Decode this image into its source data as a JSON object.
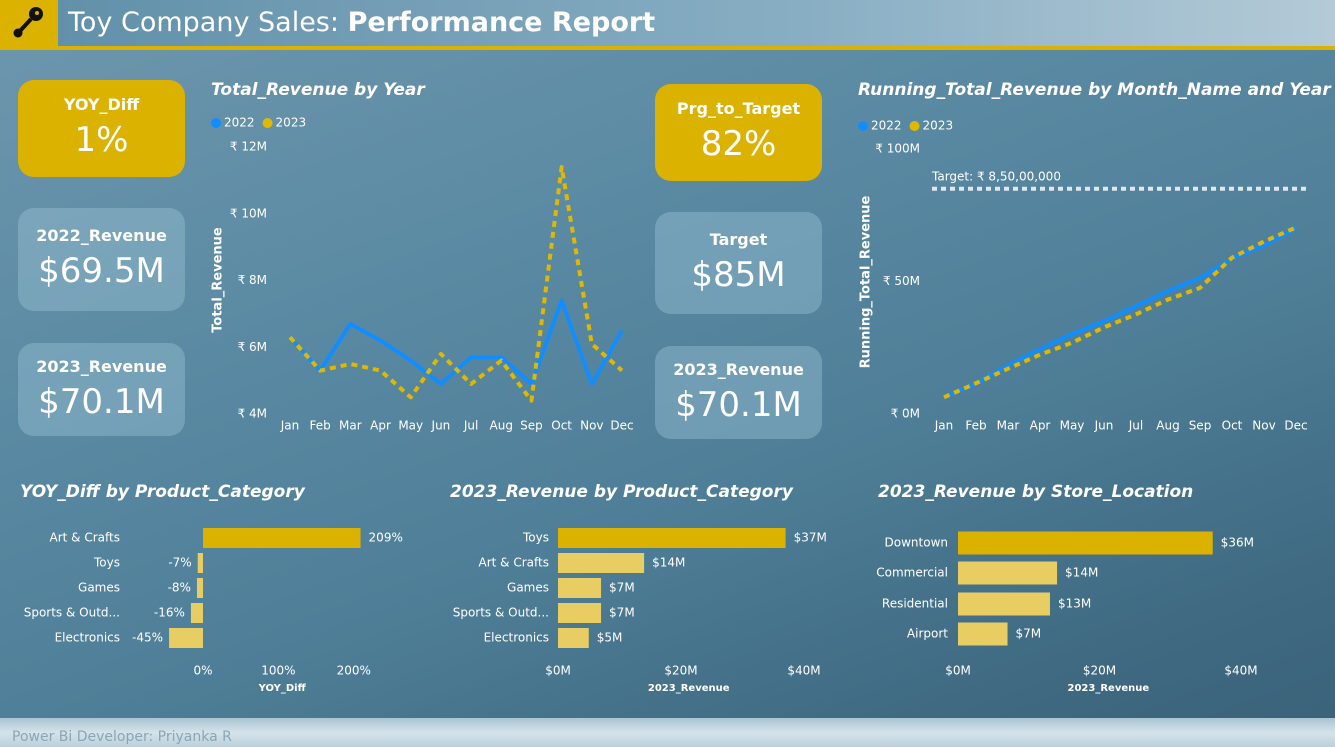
{
  "header": {
    "title_plain": "Toy Company Sales:",
    "title_bold": "Performance Report"
  },
  "cards": [
    {
      "label": "YOY_Diff",
      "value": "1%"
    },
    {
      "label": "2022_Revenue",
      "value": "$69.5M"
    },
    {
      "label": "2023_Revenue",
      "value": "$70.1M"
    },
    {
      "label": "Prg_to_Target",
      "value": "82%"
    },
    {
      "label": "Target",
      "value": "$85M"
    },
    {
      "label": "2023_Revenue",
      "value": "$70.1M"
    }
  ],
  "footer": "Power Bi Developer: Priyanka R",
  "chart_data": [
    {
      "type": "line",
      "title": "Total_Revenue by Year",
      "y_label": "Total_Revenue",
      "categories": [
        "Jan",
        "Feb",
        "Mar",
        "Apr",
        "May",
        "Jun",
        "Jul",
        "Aug",
        "Sep",
        "Oct",
        "Nov",
        "Dec"
      ],
      "series": [
        {
          "name": "2022",
          "color": "#118dff",
          "dashed": false,
          "values": [
            6300000,
            5300000,
            6700000,
            6200000,
            5600000,
            4900000,
            5700000,
            5700000,
            4900000,
            7400000,
            4900000,
            6500000
          ]
        },
        {
          "name": "2023",
          "color": "#e0b800",
          "dashed": true,
          "values": [
            6300000,
            5300000,
            5500000,
            5300000,
            4500000,
            5800000,
            4900000,
            5600000,
            4400000,
            11400000,
            6100000,
            5300000
          ]
        }
      ],
      "ylim": [
        4000000,
        12000000
      ],
      "yticks": [
        {
          "value": 4000000,
          "label": "₹ 4M"
        },
        {
          "value": 6000000,
          "label": "₹ 6M"
        },
        {
          "value": 8000000,
          "label": "₹ 8M"
        },
        {
          "value": 10000000,
          "label": "₹ 10M"
        },
        {
          "value": 12000000,
          "label": "₹ 12M"
        }
      ]
    },
    {
      "type": "line",
      "title": "Running_Total_Revenue by Month_Name and Year",
      "y_label": "Running_Total_Revenue",
      "categories": [
        "Jan",
        "Feb",
        "Mar",
        "Apr",
        "May",
        "Jun",
        "Jul",
        "Aug",
        "Sep",
        "Oct",
        "Nov",
        "Dec"
      ],
      "series": [
        {
          "name": "2022",
          "color": "#118dff",
          "dashed": false,
          "values": [
            6300000,
            11600000,
            18300000,
            24500000,
            30100000,
            35000000,
            40700000,
            46400000,
            51300000,
            58700000,
            63600000,
            70100000
          ]
        },
        {
          "name": "2023",
          "color": "#e0b800",
          "dashed": true,
          "values": [
            6300000,
            11600000,
            17100000,
            22400000,
            26900000,
            32700000,
            37600000,
            43200000,
            47600000,
            59000000,
            65100000,
            70400000
          ]
        }
      ],
      "ylim": [
        0,
        100000000
      ],
      "yticks": [
        {
          "value": 0,
          "label": "₹ 0M"
        },
        {
          "value": 50000000,
          "label": "₹ 50M"
        },
        {
          "value": 100000000,
          "label": "₹ 100M"
        }
      ],
      "target": {
        "value": 85000000,
        "label": "Target: ₹ 8,50,00,000"
      }
    },
    {
      "type": "hbar",
      "title": "YOY_Diff by Product_Category",
      "x_label": "YOY_Diff",
      "categories": [
        "Art & Crafts",
        "Toys",
        "Games",
        "Sports & Outd...",
        "Electronics"
      ],
      "values": [
        209,
        -7,
        -8,
        -16,
        -45
      ],
      "value_labels": [
        "209%",
        "-7%",
        "-8%",
        "-16%",
        "-45%"
      ],
      "colors": [
        "#dcb200",
        "#e8cd62",
        "#e8cd62",
        "#e8cd62",
        "#e8cd62"
      ],
      "xlim": [
        -50,
        260
      ],
      "xticks": [
        {
          "value": 0,
          "label": "0%"
        },
        {
          "value": 100,
          "label": "100%"
        },
        {
          "value": 200,
          "label": "200%"
        }
      ]
    },
    {
      "type": "hbar",
      "title": "2023_Revenue by Product_Category",
      "x_label": "2023_Revenue",
      "categories": [
        "Toys",
        "Art & Crafts",
        "Games",
        "Sports & Outd...",
        "Electronics"
      ],
      "values": [
        37000000,
        14000000,
        7000000,
        7000000,
        5000000
      ],
      "value_labels": [
        "$37M",
        "$14M",
        "$7M",
        "$7M",
        "$5M"
      ],
      "colors": [
        "#dcb200",
        "#e8cd62",
        "#e8cd62",
        "#e8cd62",
        "#e8cd62"
      ],
      "xlim": [
        0,
        42500000
      ],
      "xticks": [
        {
          "value": 0,
          "label": "$0M"
        },
        {
          "value": 20000000,
          "label": "$20M"
        },
        {
          "value": 40000000,
          "label": "$40M"
        }
      ]
    },
    {
      "type": "hbar",
      "title": "2023_Revenue by Store_Location",
      "x_label": "2023_Revenue",
      "categories": [
        "Downtown",
        "Commercial",
        "Residential",
        "Airport"
      ],
      "values": [
        36000000,
        14000000,
        13000000,
        7000000
      ],
      "value_labels": [
        "$36M",
        "$14M",
        "$13M",
        "$7M"
      ],
      "colors": [
        "#dcb200",
        "#e8cd62",
        "#e8cd62",
        "#e8cd62"
      ],
      "xlim": [
        0,
        42500000
      ],
      "xticks": [
        {
          "value": 0,
          "label": "$0M"
        },
        {
          "value": 20000000,
          "label": "$20M"
        },
        {
          "value": 40000000,
          "label": "$40M"
        }
      ]
    }
  ]
}
